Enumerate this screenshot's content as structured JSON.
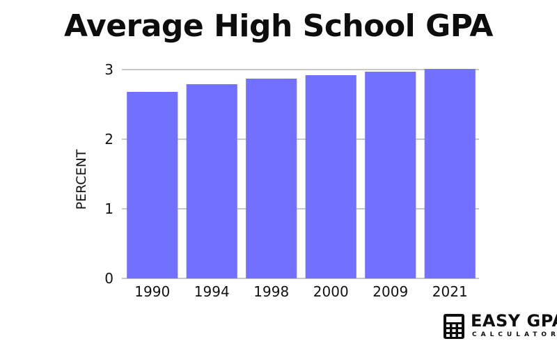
{
  "chart_data": {
    "type": "bar",
    "title": "Average High School GPA",
    "xlabel": "",
    "ylabel": "PERCENT",
    "categories": [
      "1990",
      "1994",
      "1998",
      "2000",
      "2009",
      "2021"
    ],
    "values": [
      2.68,
      2.79,
      2.87,
      2.92,
      2.97,
      3.01
    ],
    "ylim": [
      0,
      3
    ],
    "yticks": [
      "0",
      "1",
      "2",
      "3"
    ],
    "grid": true,
    "bar_color": "#7170ff",
    "grid_color": "#c8c8c8"
  },
  "logo": {
    "name": "EASY GPA",
    "sub": "CALCULATOR"
  }
}
